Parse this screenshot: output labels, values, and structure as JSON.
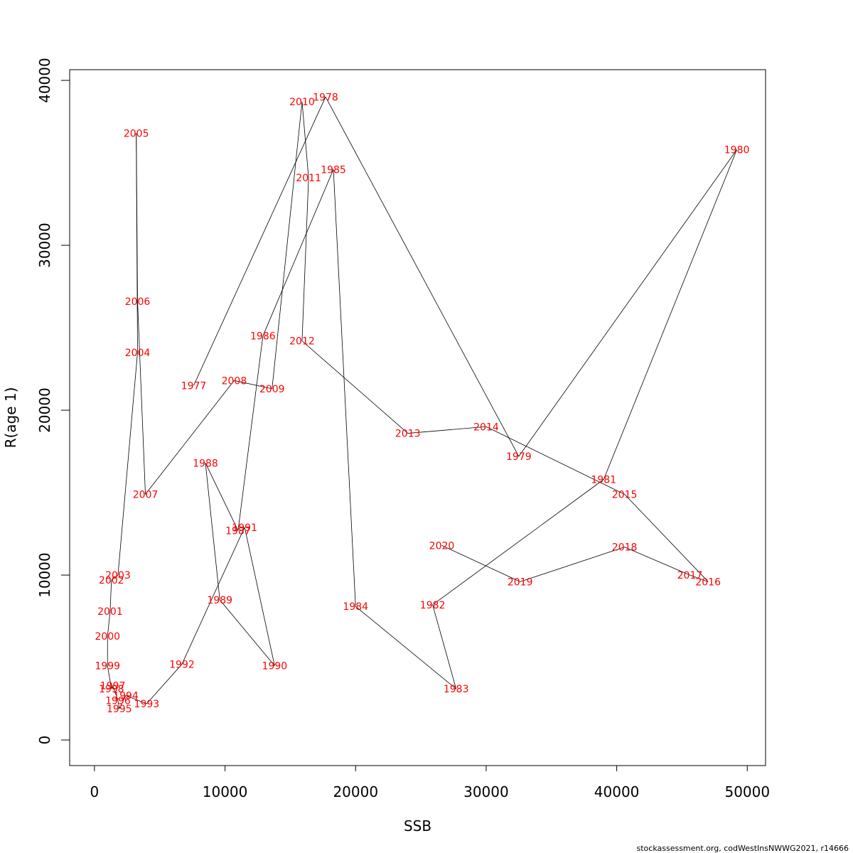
{
  "chart_data": {
    "type": "scatter",
    "xlabel": "SSB",
    "ylabel": "R(age 1)",
    "xlim": [
      -1900,
      51400
    ],
    "ylim": [
      -1550,
      40650
    ],
    "xticks": [
      0,
      10000,
      20000,
      30000,
      40000,
      50000
    ],
    "yticks": [
      0,
      10000,
      20000,
      30000,
      40000
    ],
    "xtick_labels": [
      "0",
      "10000",
      "20000",
      "30000",
      "40000",
      "50000"
    ],
    "ytick_labels": [
      "0",
      "10000",
      "20000",
      "30000",
      "40000"
    ],
    "connect_points": true,
    "line_color": "#000000",
    "label_color": "#ff0000",
    "points": [
      {
        "year": "1977",
        "x": 7600,
        "y": 21500
      },
      {
        "year": "1978",
        "x": 17700,
        "y": 39000
      },
      {
        "year": "1979",
        "x": 32500,
        "y": 17200
      },
      {
        "year": "1980",
        "x": 49200,
        "y": 35800
      },
      {
        "year": "1981",
        "x": 39000,
        "y": 15800
      },
      {
        "year": "1982",
        "x": 25900,
        "y": 8200
      },
      {
        "year": "1983",
        "x": 27700,
        "y": 3100
      },
      {
        "year": "1984",
        "x": 20000,
        "y": 8100
      },
      {
        "year": "1985",
        "x": 18300,
        "y": 34600
      },
      {
        "year": "1986",
        "x": 12900,
        "y": 24500
      },
      {
        "year": "1987",
        "x": 11000,
        "y": 12700
      },
      {
        "year": "1988",
        "x": 8500,
        "y": 16800
      },
      {
        "year": "1989",
        "x": 9600,
        "y": 8500
      },
      {
        "year": "1990",
        "x": 13800,
        "y": 4500
      },
      {
        "year": "1991",
        "x": 11500,
        "y": 12900
      },
      {
        "year": "1992",
        "x": 6700,
        "y": 4600
      },
      {
        "year": "1993",
        "x": 4000,
        "y": 2200
      },
      {
        "year": "1994",
        "x": 2400,
        "y": 2700
      },
      {
        "year": "1995",
        "x": 1900,
        "y": 1900
      },
      {
        "year": "1996",
        "x": 1800,
        "y": 2400
      },
      {
        "year": "1997",
        "x": 1400,
        "y": 3300
      },
      {
        "year": "1998",
        "x": 1300,
        "y": 3100
      },
      {
        "year": "1999",
        "x": 1000,
        "y": 4500
      },
      {
        "year": "2000",
        "x": 1000,
        "y": 6300
      },
      {
        "year": "2001",
        "x": 1200,
        "y": 7800
      },
      {
        "year": "2002",
        "x": 1300,
        "y": 9700
      },
      {
        "year": "2003",
        "x": 1800,
        "y": 10000
      },
      {
        "year": "2004",
        "x": 3300,
        "y": 23500
      },
      {
        "year": "2005",
        "x": 3200,
        "y": 36800
      },
      {
        "year": "2006",
        "x": 3300,
        "y": 26600
      },
      {
        "year": "2007",
        "x": 3900,
        "y": 14900
      },
      {
        "year": "2008",
        "x": 10700,
        "y": 21800
      },
      {
        "year": "2009",
        "x": 13600,
        "y": 21300
      },
      {
        "year": "2010",
        "x": 15900,
        "y": 38700
      },
      {
        "year": "2011",
        "x": 16400,
        "y": 34100
      },
      {
        "year": "2012",
        "x": 15900,
        "y": 24200
      },
      {
        "year": "2013",
        "x": 24000,
        "y": 18600
      },
      {
        "year": "2014",
        "x": 30000,
        "y": 19000
      },
      {
        "year": "2015",
        "x": 40600,
        "y": 14900
      },
      {
        "year": "2016",
        "x": 47000,
        "y": 9600
      },
      {
        "year": "2017",
        "x": 45600,
        "y": 10000
      },
      {
        "year": "2018",
        "x": 40600,
        "y": 11700
      },
      {
        "year": "2019",
        "x": 32600,
        "y": 9600
      },
      {
        "year": "2020",
        "x": 26600,
        "y": 11800
      }
    ]
  },
  "footer": {
    "credit": "stockassessment.org, codWestInsNWWG2021, r14666"
  }
}
